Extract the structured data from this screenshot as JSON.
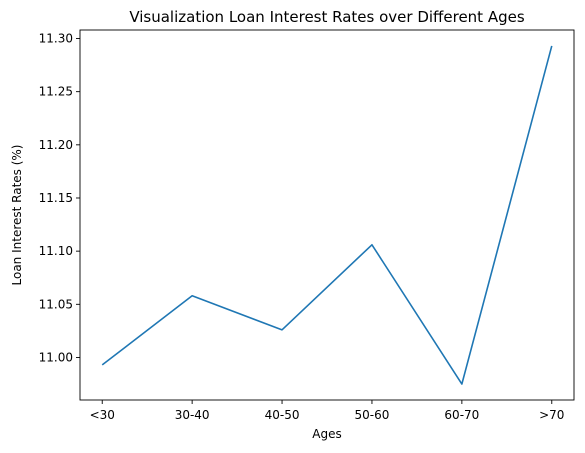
{
  "chart_data": {
    "type": "line",
    "title": "Visualization Loan Interest Rates over Different Ages",
    "xlabel": "Ages",
    "ylabel": "Loan Interest Rates (%)",
    "categories": [
      "<30",
      "30-40",
      "40-50",
      "50-60",
      "60-70",
      ">70"
    ],
    "series": [
      {
        "values": [
          10.993,
          11.058,
          11.026,
          11.106,
          10.975,
          11.293
        ],
        "color": "#1f77b4"
      }
    ],
    "ylim": [
      10.96,
      11.308
    ],
    "yticks": [
      "11.00",
      "11.05",
      "11.10",
      "11.15",
      "11.20",
      "11.25",
      "11.30"
    ],
    "grid": false,
    "legend": "none"
  }
}
